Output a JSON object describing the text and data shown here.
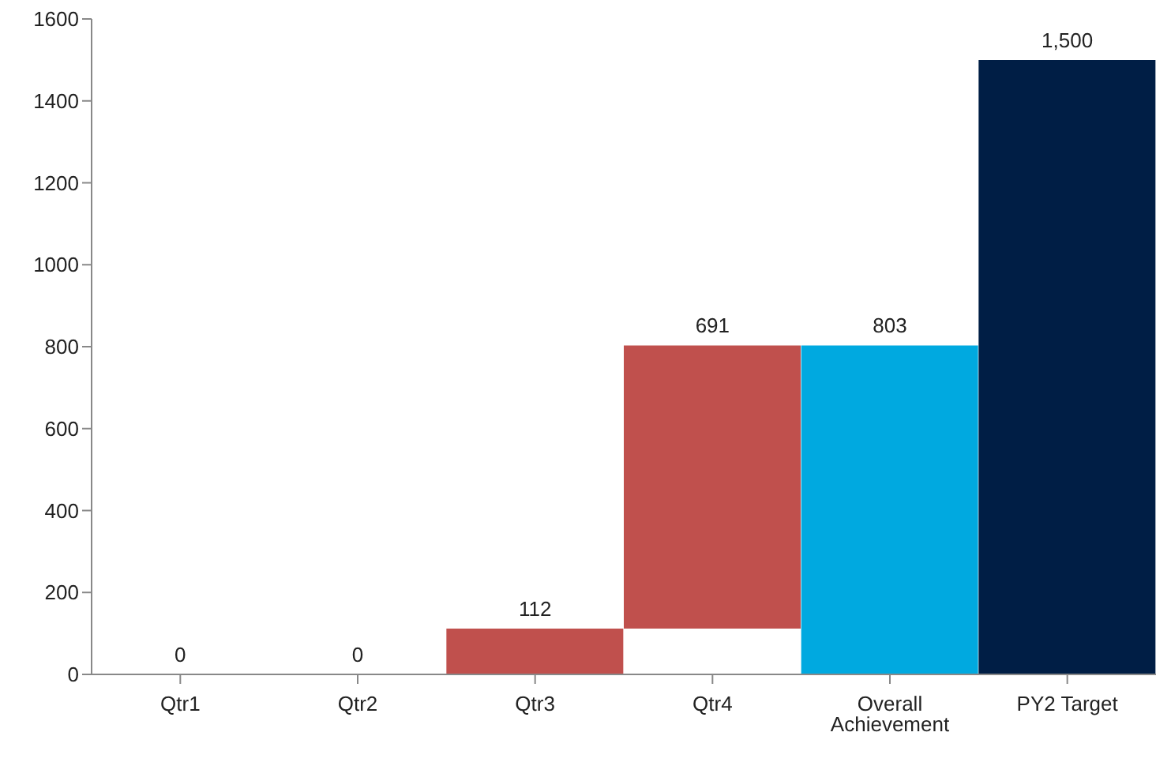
{
  "chart_data": {
    "type": "bar",
    "categories": [
      "Qtr1",
      "Qtr2",
      "Qtr3",
      "Qtr4",
      "Overall Achievement",
      "PY2 Target"
    ],
    "values": [
      0,
      0,
      112,
      691,
      803,
      1500
    ],
    "base": [
      null,
      null,
      null,
      112,
      null,
      null
    ],
    "colors": [
      "#c0504d",
      "#c0504d",
      "#c0504d",
      "#c0504d",
      "#00a9e0",
      "#001e45"
    ],
    "value_labels": [
      "0",
      "0",
      "112",
      "691",
      "803",
      "1,500"
    ],
    "ylim": [
      0,
      1600
    ],
    "yticks": [
      0,
      200,
      400,
      600,
      800,
      1000,
      1200,
      1400,
      1600
    ],
    "grid": false,
    "legend": false
  }
}
